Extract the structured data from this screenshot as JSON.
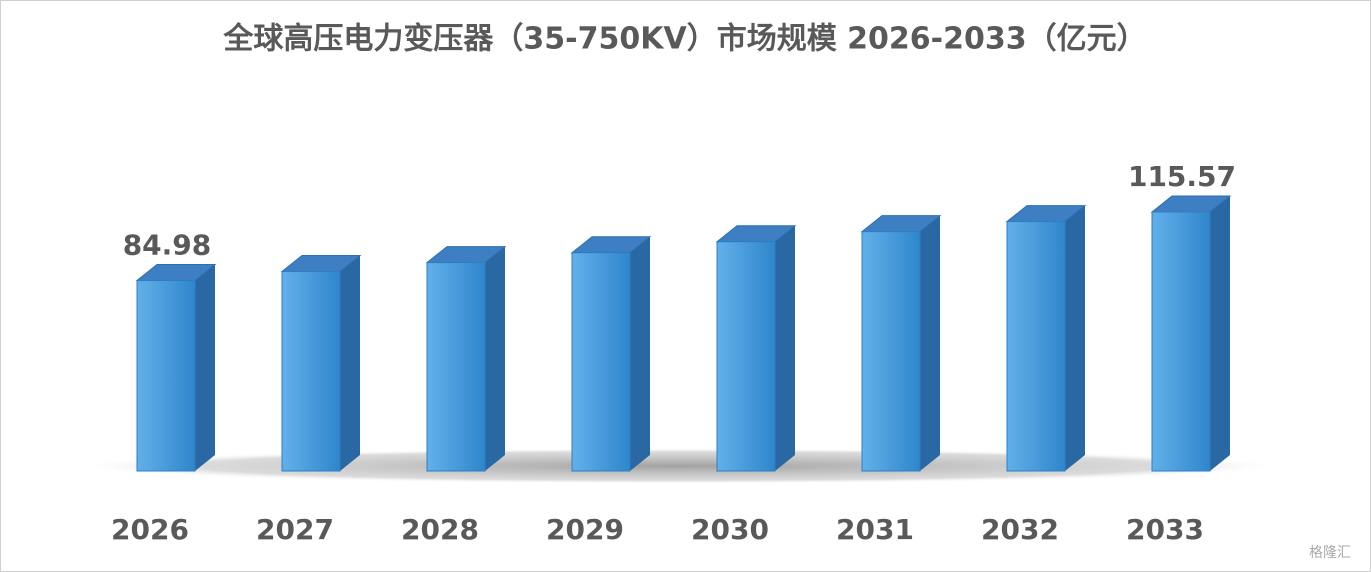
{
  "chart_data": {
    "type": "bar3d",
    "title": "全球高压电力变压器（35-750KV）市场规模 2026-2033（亿元）",
    "categories": [
      "2026",
      "2027",
      "2028",
      "2029",
      "2030",
      "2031",
      "2032",
      "2033"
    ],
    "values": [
      84.98,
      89.0,
      93.0,
      97.4,
      102.3,
      106.8,
      111.3,
      115.57
    ],
    "value_labels": [
      "84.98",
      null,
      null,
      null,
      null,
      null,
      null,
      "115.57"
    ],
    "color": "#4a9be0",
    "watermark": "格隆汇"
  }
}
